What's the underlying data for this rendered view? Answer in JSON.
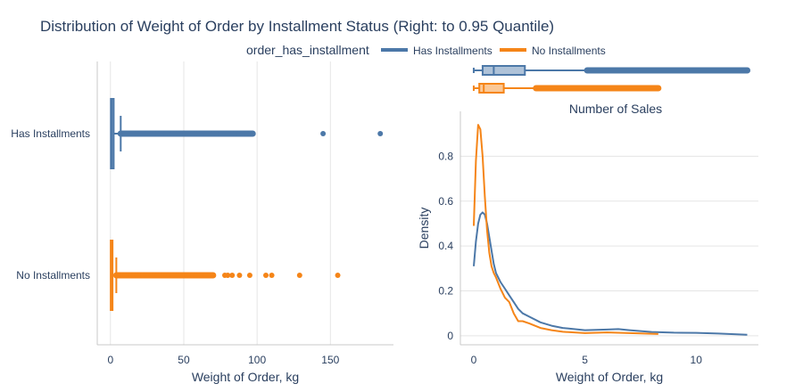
{
  "title": "Distribution of Weight of Order by Installment Status (Right: to 0.95 Quantile)",
  "legend": {
    "title": "order_has_installment",
    "items": [
      {
        "label": "Has Installments",
        "color": "#4c78a8"
      },
      {
        "label": "No Installments",
        "color": "#f58518"
      }
    ]
  },
  "chart_data": [
    {
      "type": "box",
      "orientation": "horizontal",
      "categories": [
        "Has Installments",
        "No Installments"
      ],
      "xlabel": "Weight of Order, kg",
      "ylabel": "",
      "xlim": [
        -9,
        193
      ],
      "xticks": [
        0,
        50,
        100,
        150
      ],
      "series": [
        {
          "name": "Has Installments",
          "color": "#4c78a8",
          "min": 0.0,
          "q1": 0.3,
          "median": 0.9,
          "q3": 2.2,
          "upper_fence": 7,
          "outlier_band": [
            7,
            97
          ],
          "outliers": [
            7,
            8,
            9,
            10,
            12,
            14,
            16,
            18,
            20,
            23,
            26,
            28,
            30,
            32,
            34,
            36,
            38,
            40,
            42,
            44,
            46,
            48,
            50,
            52,
            54,
            56,
            58,
            60,
            62,
            65,
            68,
            70,
            72,
            75,
            78,
            80,
            83,
            85,
            88,
            90,
            93,
            95,
            97,
            145,
            184
          ]
        },
        {
          "name": "No Installments",
          "color": "#f58518",
          "min": 0.0,
          "q1": 0.2,
          "median": 0.5,
          "q3": 1.3,
          "upper_fence": 4,
          "outlier_band": [
            4,
            70
          ],
          "outliers": [
            4,
            5,
            6,
            8,
            10,
            12,
            14,
            16,
            18,
            20,
            22,
            24,
            26,
            28,
            30,
            32,
            34,
            36,
            38,
            40,
            42,
            44,
            46,
            48,
            50,
            52,
            54,
            56,
            58,
            60,
            62,
            65,
            68,
            70,
            78,
            80,
            83,
            88,
            95,
            106,
            110,
            129,
            155
          ]
        }
      ]
    },
    {
      "type": "box",
      "orientation": "horizontal",
      "title": "",
      "xlim": [
        -0.6,
        12.8
      ],
      "series": [
        {
          "name": "Has Installments",
          "color": "#4c78a8",
          "min": 0.0,
          "q1": 0.4,
          "median": 0.9,
          "q3": 2.3,
          "upper_fence": 5.1,
          "outlier_band": [
            5.1,
            12.3
          ]
        },
        {
          "name": "No Installments",
          "color": "#f58518",
          "min": 0.0,
          "q1": 0.25,
          "median": 0.45,
          "q3": 1.35,
          "upper_fence": 2.8,
          "outlier_band": [
            2.8,
            8.3
          ]
        }
      ]
    },
    {
      "type": "line",
      "title": "Number of Sales",
      "xlabel": "Weight of Order, kg",
      "ylabel": "Density",
      "xlim": [
        -0.6,
        12.8
      ],
      "ylim": [
        -0.04,
        1.0
      ],
      "xticks": [
        0,
        5,
        10
      ],
      "yticks": [
        0,
        0.2,
        0.4,
        0.6,
        0.8
      ],
      "series": [
        {
          "name": "Has Installments",
          "color": "#4c78a8",
          "x": [
            0,
            0.1,
            0.2,
            0.3,
            0.4,
            0.5,
            0.6,
            0.7,
            0.8,
            0.9,
            1.0,
            1.2,
            1.4,
            1.6,
            1.8,
            2.0,
            2.2,
            2.5,
            3.0,
            3.5,
            4.0,
            5.0,
            6.0,
            6.5,
            7.0,
            8.0,
            9.0,
            10.0,
            11.0,
            12.3
          ],
          "y": [
            0.31,
            0.42,
            0.5,
            0.54,
            0.55,
            0.54,
            0.5,
            0.44,
            0.38,
            0.32,
            0.28,
            0.24,
            0.21,
            0.18,
            0.15,
            0.12,
            0.1,
            0.085,
            0.06,
            0.045,
            0.035,
            0.025,
            0.028,
            0.03,
            0.025,
            0.017,
            0.014,
            0.013,
            0.01,
            0.005
          ]
        },
        {
          "name": "No Installments",
          "color": "#f58518",
          "x": [
            0,
            0.1,
            0.2,
            0.3,
            0.4,
            0.5,
            0.6,
            0.7,
            0.8,
            0.9,
            1.0,
            1.2,
            1.4,
            1.6,
            1.8,
            2.0,
            2.2,
            2.5,
            3.0,
            3.5,
            4.0,
            5.0,
            6.0,
            7.0,
            8.3
          ],
          "y": [
            0.49,
            0.78,
            0.94,
            0.92,
            0.8,
            0.62,
            0.47,
            0.37,
            0.31,
            0.28,
            0.26,
            0.21,
            0.17,
            0.15,
            0.1,
            0.065,
            0.065,
            0.055,
            0.035,
            0.025,
            0.018,
            0.012,
            0.015,
            0.012,
            0.008
          ]
        }
      ]
    }
  ]
}
